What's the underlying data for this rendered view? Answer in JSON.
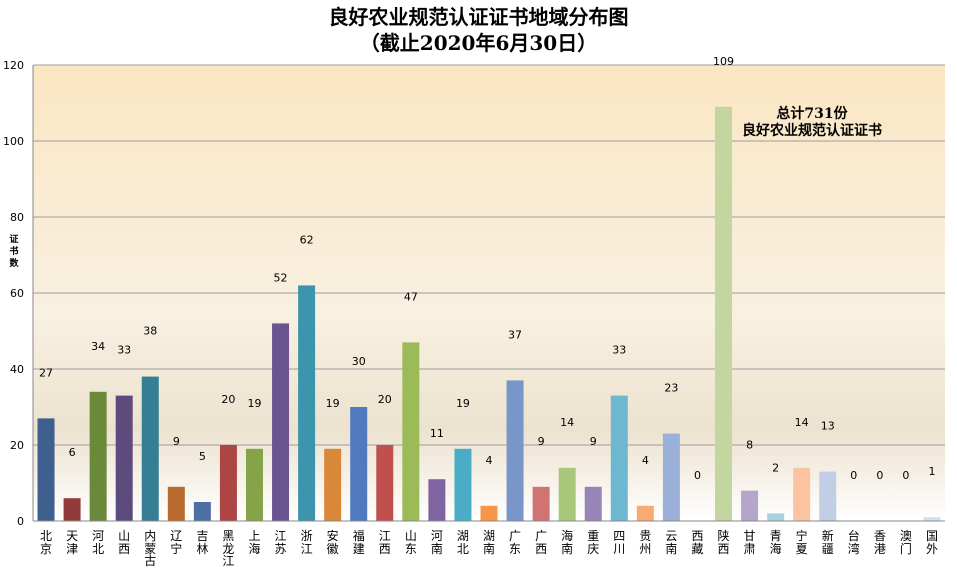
{
  "chart_data": {
    "type": "bar",
    "title": "良好农业规范认证证书地域分布图",
    "subtitle": "（截止2020年6月30日）",
    "ylabel": "证书数",
    "xlabel": "",
    "ylim": [
      0,
      120
    ],
    "yticks": [
      "0",
      "20",
      "40",
      "60",
      "80",
      "100",
      "120"
    ],
    "grid": true,
    "annotation": {
      "line1": "总计731份",
      "line2": "良好农业规范认证证书"
    },
    "categories": [
      "北京",
      "天津",
      "河北",
      "山西",
      "内蒙古",
      "辽宁",
      "吉林",
      "黑龙江",
      "上海",
      "江苏",
      "浙江",
      "安徽",
      "福建",
      "江西",
      "山东",
      "河南",
      "湖北",
      "湖南",
      "广东",
      "广西",
      "海南",
      "重庆",
      "四川",
      "贵州",
      "云南",
      "西藏",
      "陕西",
      "甘肃",
      "青海",
      "宁夏",
      "新疆",
      "台湾",
      "香港",
      "澳门",
      "国外"
    ],
    "values": [
      27,
      6,
      34,
      33,
      38,
      9,
      5,
      20,
      19,
      52,
      62,
      19,
      30,
      20,
      47,
      11,
      19,
      4,
      37,
      9,
      14,
      9,
      33,
      4,
      23,
      0,
      109,
      8,
      2,
      14,
      13,
      0,
      0,
      0,
      1
    ],
    "value_labels": [
      "27",
      "6",
      "34",
      "33",
      "38",
      "9",
      "5",
      "20",
      "19",
      "52",
      "62",
      "19",
      "30",
      "20",
      "47",
      "11",
      "19",
      "4",
      "37",
      "9",
      "14",
      "9",
      "33",
      "4",
      "23",
      "0",
      "109",
      "8",
      "2",
      "14",
      "13",
      "0",
      "0",
      "0",
      "1"
    ],
    "colors": [
      "#3f5f8e",
      "#923c3a",
      "#6a8a3a",
      "#5d4b7e",
      "#347f95",
      "#b8692e",
      "#4e6fa4",
      "#ad4545",
      "#85a348",
      "#6a5590",
      "#3d95ad",
      "#d98839",
      "#4f7ac0",
      "#c0504d",
      "#9bbb59",
      "#8064a2",
      "#4bacc6",
      "#f79646",
      "#7996c8",
      "#d07473",
      "#a9c77a",
      "#9685b5",
      "#6db8d0",
      "#f9ab6f",
      "#9bb0d8",
      "#d49b9a",
      "#c3d6a0",
      "#b4a6c8",
      "#a8d3e3",
      "#fbc3a0",
      "#c2cde6",
      "#e6c8c8",
      "#d7e4be",
      "#d2cade",
      "#cbe4ee"
    ]
  }
}
